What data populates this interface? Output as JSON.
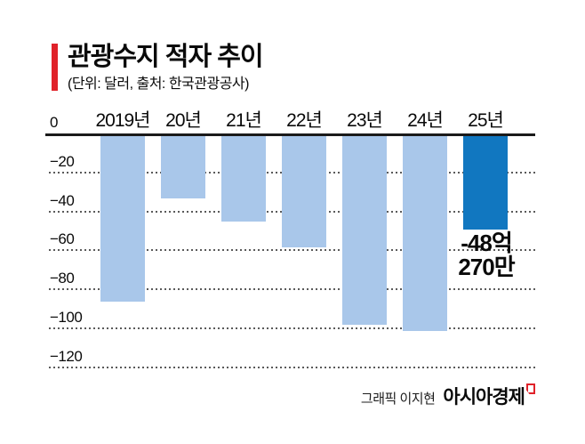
{
  "header": {
    "title": "관광수지 적자 추이",
    "subtitle": "(단위: 달러, 출처: 한국관광공사)",
    "accent_color": "#e0222a"
  },
  "chart_data": {
    "type": "bar",
    "title": "관광수지 적자 추이",
    "unit_note": "단위: 달러",
    "source_note": "출처: 한국관광공사",
    "categories": [
      "2019년",
      "20년",
      "21년",
      "22년",
      "23년",
      "24년",
      "25년"
    ],
    "values": [
      -85,
      -32,
      -44,
      -57,
      -97,
      -100,
      -48
    ],
    "xlabel": "",
    "ylabel": "",
    "ylim": [
      -120,
      0
    ],
    "yticks": [
      0,
      -20,
      -40,
      -60,
      -80,
      -100,
      -120
    ],
    "grid": "horizontal-dotted",
    "legend": "none",
    "bar_color": "#a9c7ea",
    "highlight_index": 6,
    "highlight_color": "#1177c0",
    "highlight_label_lines": [
      "-48억",
      "270만"
    ]
  },
  "footer": {
    "credit": "그래픽 이지현",
    "brand": "아시아경제",
    "brand_mark": "speech-bubble-mark",
    "brand_mark_color": "#e0222a"
  }
}
